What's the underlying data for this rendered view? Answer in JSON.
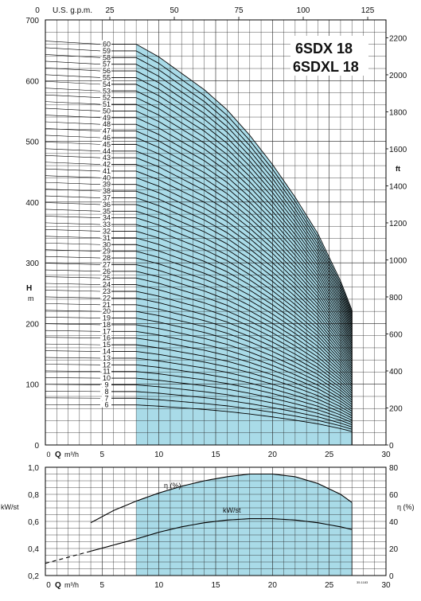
{
  "title": {
    "line1": "6SDX 18",
    "line2": "6SDXL 18"
  },
  "colors": {
    "fill": "#a9dbe8",
    "grid": "#222222",
    "curve": "#000000",
    "text": "#111111"
  },
  "chart_data": [
    {
      "type": "line",
      "name": "head",
      "x": {
        "label_bold": "Q",
        "label_unit": "m³/h",
        "min": 0,
        "max": 30,
        "ticks": [
          0,
          5,
          10,
          15,
          20,
          25,
          30
        ],
        "tick_labels": [
          "0",
          "5",
          "10",
          "15",
          "20",
          "25",
          "30"
        ]
      },
      "x_top": {
        "label": "U.S. g.p.m.",
        "ticks": [
          0,
          25,
          50,
          75,
          100,
          125
        ],
        "tick_labels": [
          "0",
          "25",
          "50",
          "75",
          "100",
          "125"
        ]
      },
      "y": {
        "label": "H",
        "unit": "m",
        "min": 0,
        "max": 700,
        "ticks": [
          0,
          100,
          200,
          300,
          400,
          500,
          600,
          700
        ],
        "tick_labels": [
          "0",
          "100",
          "200",
          "300",
          "400",
          "500",
          "600",
          "700"
        ]
      },
      "y_right": {
        "label": "ft",
        "ticks": [
          0,
          200,
          400,
          600,
          800,
          1000,
          1200,
          1400,
          1600,
          1800,
          2000,
          2200
        ],
        "tick_labels": [
          "0",
          "200",
          "400",
          "600",
          "800",
          "1000",
          "1200",
          "1400",
          "1600",
          "1800",
          "2000",
          "2200"
        ]
      },
      "operating_range": [
        8,
        27
      ],
      "shutoff_head_per_stage": 11.0,
      "head_per_stage_at_range_end": 3.7,
      "curve_x": [
        8,
        10,
        12,
        14,
        16,
        18,
        20,
        22,
        24,
        26,
        27
      ],
      "head_per_stage": [
        11.0,
        10.65,
        10.2,
        9.75,
        9.2,
        8.5,
        7.7,
        6.8,
        5.8,
        4.5,
        3.7
      ],
      "stages": [
        6,
        7,
        8,
        9,
        10,
        11,
        12,
        13,
        14,
        15,
        16,
        17,
        18,
        19,
        20,
        21,
        22,
        23,
        24,
        25,
        26,
        27,
        28,
        29,
        30,
        31,
        32,
        33,
        34,
        35,
        36,
        37,
        38,
        39,
        40,
        41,
        42,
        43,
        44,
        45,
        46,
        47,
        48,
        49,
        50,
        51,
        52,
        53,
        54,
        55,
        56,
        57,
        58,
        59,
        60
      ],
      "stage_labels": [
        "6",
        "7",
        "8",
        "9",
        "10",
        "11",
        "12",
        "13",
        "14",
        "15",
        "16",
        "17",
        "18",
        "19",
        "20",
        "21",
        "22",
        "23",
        "24",
        "25",
        "26",
        "27",
        "28",
        "29",
        "30",
        "31",
        "32",
        "33",
        "34",
        "35",
        "36",
        "37",
        "38",
        "39",
        "40",
        "41",
        "42",
        "43",
        "44",
        "45",
        "46",
        "47",
        "48",
        "49",
        "50",
        "51",
        "52",
        "53",
        "54",
        "55",
        "56",
        "57",
        "58",
        "59",
        "60"
      ],
      "grid": true
    },
    {
      "type": "line",
      "name": "efficiency-power",
      "x": {
        "label_bold": "Q",
        "label_unit": "m³/h",
        "min": 0,
        "max": 30,
        "ticks": [
          0,
          5,
          10,
          15,
          20,
          25,
          30
        ],
        "tick_labels": [
          "0",
          "5",
          "10",
          "15",
          "20",
          "25",
          "30"
        ]
      },
      "y_left": {
        "label": "kW/st",
        "min": 0.2,
        "max": 1.0,
        "ticks": [
          0.2,
          0.4,
          0.6,
          0.8,
          1.0
        ],
        "tick_labels": [
          "0,2",
          "0,4",
          "0,6",
          "0,8",
          "1,0"
        ]
      },
      "y_right": {
        "label": "η (%)",
        "min": 0,
        "max": 80,
        "ticks": [
          0,
          20,
          40,
          60,
          80
        ],
        "tick_labels": [
          "0",
          "20",
          "40",
          "60",
          "80"
        ]
      },
      "operating_range": [
        8,
        27
      ],
      "series": [
        {
          "name": "η (%)",
          "axis": "right",
          "x": [
            4,
            6,
            8,
            10,
            12,
            14,
            16,
            18,
            20,
            22,
            24,
            26,
            27
          ],
          "values": [
            39,
            48,
            55,
            61,
            66,
            70,
            73,
            75,
            75,
            73,
            68,
            60,
            54
          ]
        },
        {
          "name": "kW/st",
          "axis": "left",
          "x": [
            0,
            4,
            8,
            10,
            12,
            14,
            16,
            18,
            20,
            22,
            24,
            26,
            27
          ],
          "values": [
            0.29,
            0.38,
            0.47,
            0.52,
            0.56,
            0.59,
            0.61,
            0.62,
            0.62,
            0.61,
            0.59,
            0.56,
            0.54
          ],
          "dashed_until": 4
        }
      ],
      "grid": true
    }
  ],
  "footnote": "35.1183"
}
